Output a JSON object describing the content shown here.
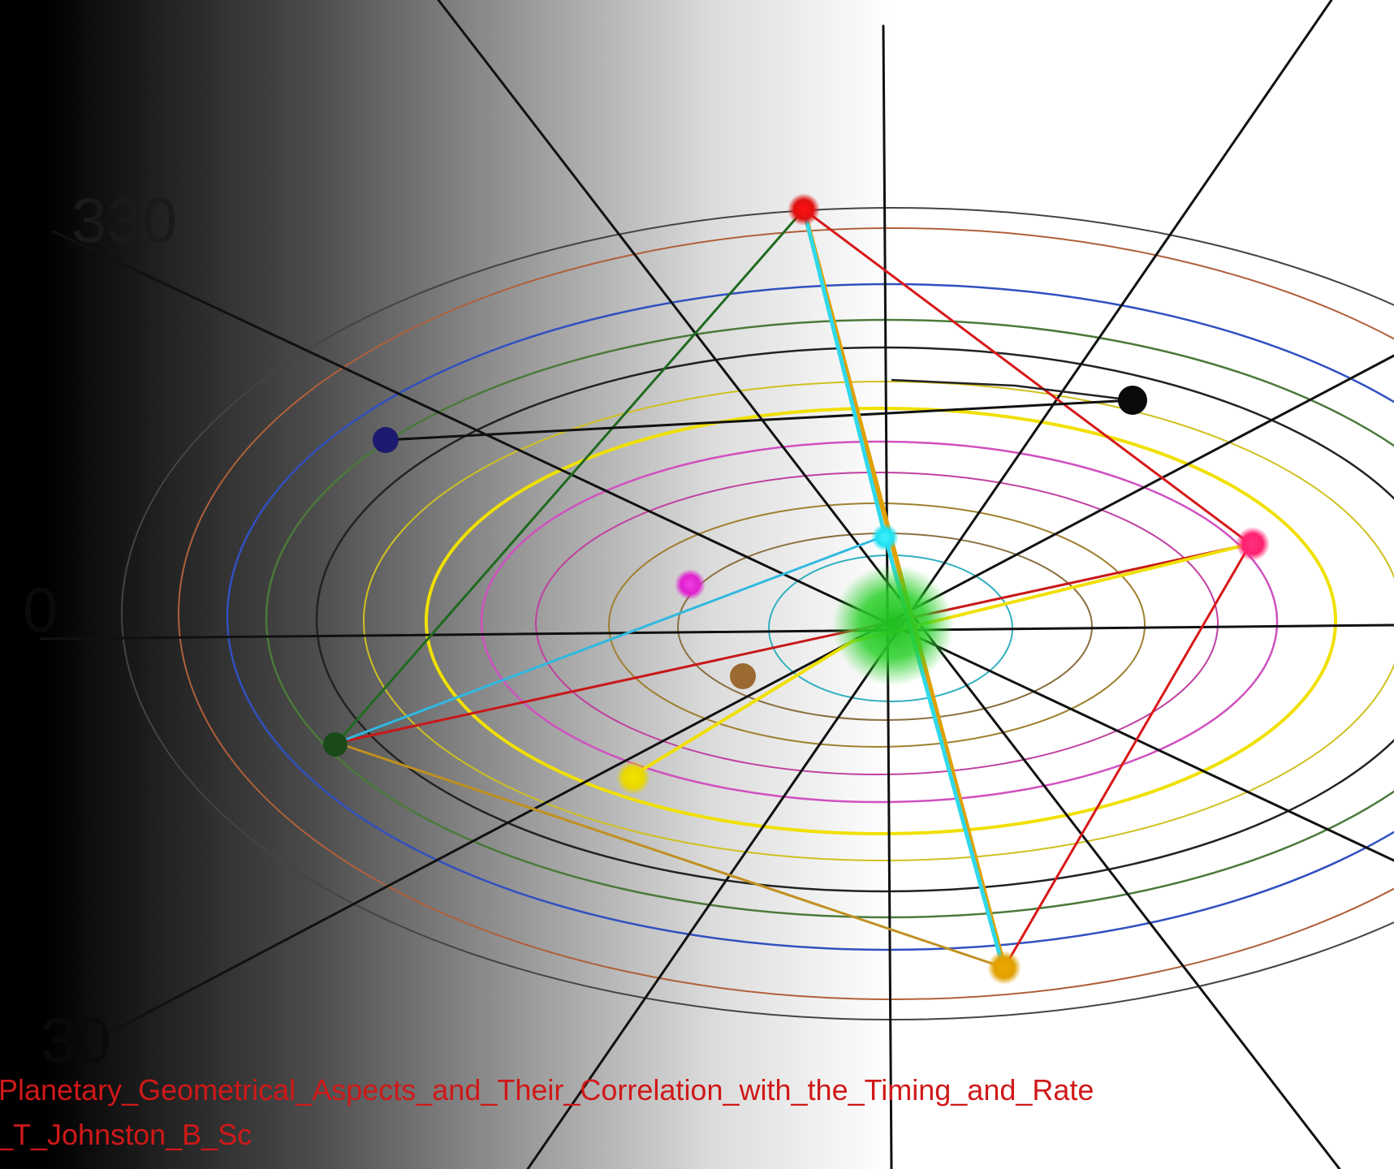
{
  "angle_labels": {
    "label_330": "330",
    "label_0": "0",
    "label_30": "30"
  },
  "caption": {
    "line1": "/Planetary_Geometrical_Aspects_and_Their_Correlation_with_the_Timing_and_Rate",
    "line2": "_T_Johnston_B_Sc"
  },
  "colors": {
    "red": "#e01010",
    "orange": "#e0a000",
    "yellow": "#f0e000",
    "cyan": "#20e0f0",
    "green": "#1f7a1f",
    "black": "#111111",
    "navy": "#1a1a80",
    "pink": "#ff2070",
    "magenta": "#e020d0",
    "brown": "#a06020",
    "center": "#20c020"
  }
}
